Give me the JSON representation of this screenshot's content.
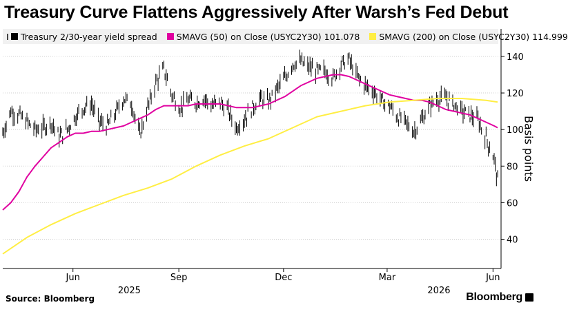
{
  "title": "Treasury Curve Flattens Aggressively After Warsh’s Fed Debut",
  "legend": [
    {
      "label": "Treasury 2/30-year yield spread",
      "color": "#000000",
      "extra": ""
    },
    {
      "label": "SMAVG (50)",
      "color": "#e000a0",
      "extra": "on Close (USYC2Y30) 101.078"
    },
    {
      "label": "SMAVG (200)",
      "color": "#ffee44",
      "extra": "on Close (USYC2Y30) 114.999"
    }
  ],
  "legend_icon": "chart-settings-icon",
  "source": "Source: Bloomberg",
  "brand": "Bloomberg",
  "chart_data": {
    "type": "line",
    "title": "Treasury Curve Flattens Aggressively After Warsh’s Fed Debut",
    "xlabel": "",
    "ylabel": "Basis points",
    "y_axis_side": "right",
    "ylim": [
      24,
      146
    ],
    "yticks": [
      40,
      60,
      80,
      100,
      120,
      140
    ],
    "xlim": [
      "2025-04-01",
      "2026-06-08"
    ],
    "xticks": [
      {
        "date": "2025-06-01",
        "label": "Jun"
      },
      {
        "date": "2025-09-01",
        "label": "Sep"
      },
      {
        "date": "2025-12-01",
        "label": "Dec"
      },
      {
        "date": "2026-03-01",
        "label": "Mar"
      },
      {
        "date": "2026-06-01",
        "label": "Jun"
      }
    ],
    "year_labels": [
      {
        "date": "2025-07-20",
        "label": "2025"
      },
      {
        "date": "2026-04-15",
        "label": "2026"
      }
    ],
    "grid": "horizontal",
    "series": [
      {
        "name": "Treasury 2/30-year yield spread",
        "style": "bars",
        "color": "#000000",
        "x": [
          "2025-04-01",
          "2025-04-08",
          "2025-04-15",
          "2025-04-22",
          "2025-04-29",
          "2025-05-06",
          "2025-05-13",
          "2025-05-20",
          "2025-05-27",
          "2025-06-03",
          "2025-06-10",
          "2025-06-17",
          "2025-06-24",
          "2025-07-01",
          "2025-07-08",
          "2025-07-15",
          "2025-07-22",
          "2025-07-29",
          "2025-08-05",
          "2025-08-12",
          "2025-08-19",
          "2025-08-26",
          "2025-09-02",
          "2025-09-09",
          "2025-09-16",
          "2025-09-23",
          "2025-09-30",
          "2025-10-07",
          "2025-10-14",
          "2025-10-21",
          "2025-10-28",
          "2025-11-04",
          "2025-11-11",
          "2025-11-18",
          "2025-11-25",
          "2025-12-02",
          "2025-12-09",
          "2025-12-16",
          "2025-12-23",
          "2025-12-30",
          "2026-01-06",
          "2026-01-13",
          "2026-01-20",
          "2026-01-27",
          "2026-02-03",
          "2026-02-10",
          "2026-02-17",
          "2026-02-24",
          "2026-03-03",
          "2026-03-10",
          "2026-03-17",
          "2026-03-24",
          "2026-03-31",
          "2026-04-07",
          "2026-04-14",
          "2026-04-21",
          "2026-04-28",
          "2026-05-05",
          "2026-05-12",
          "2026-05-19",
          "2026-05-26",
          "2026-06-02",
          "2026-06-05"
        ],
        "values": [
          98,
          110,
          108,
          104,
          100,
          101,
          104,
          96,
          100,
          107,
          112,
          114,
          104,
          102,
          109,
          117,
          114,
          97,
          112,
          126,
          133,
          119,
          112,
          116,
          115,
          117,
          113,
          115,
          110,
          101,
          106,
          112,
          117,
          115,
          122,
          128,
          136,
          137,
          134,
          132,
          132,
          128,
          136,
          138,
          129,
          124,
          121,
          116,
          113,
          107,
          104,
          99,
          105,
          113,
          117,
          117,
          114,
          110,
          108,
          105,
          95,
          84,
          72
        ]
      },
      {
        "name": "SMAVG (50)",
        "style": "line",
        "color": "#e000a0",
        "x": [
          "2025-04-01",
          "2025-04-08",
          "2025-04-15",
          "2025-04-22",
          "2025-04-29",
          "2025-05-06",
          "2025-05-13",
          "2025-05-20",
          "2025-05-27",
          "2025-06-03",
          "2025-06-10",
          "2025-06-17",
          "2025-06-24",
          "2025-07-01",
          "2025-07-08",
          "2025-07-15",
          "2025-07-22",
          "2025-07-29",
          "2025-08-05",
          "2025-08-12",
          "2025-08-19",
          "2025-08-26",
          "2025-09-02",
          "2025-09-09",
          "2025-09-16",
          "2025-09-23",
          "2025-09-30",
          "2025-10-07",
          "2025-10-14",
          "2025-10-21",
          "2025-10-28",
          "2025-11-04",
          "2025-11-11",
          "2025-11-18",
          "2025-11-25",
          "2025-12-02",
          "2025-12-09",
          "2025-12-16",
          "2025-12-23",
          "2025-12-30",
          "2026-01-06",
          "2026-01-13",
          "2026-01-20",
          "2026-01-27",
          "2026-02-03",
          "2026-02-10",
          "2026-02-17",
          "2026-02-24",
          "2026-03-03",
          "2026-03-10",
          "2026-03-17",
          "2026-03-24",
          "2026-03-31",
          "2026-04-07",
          "2026-04-14",
          "2026-04-21",
          "2026-04-28",
          "2026-05-05",
          "2026-05-12",
          "2026-05-19",
          "2026-05-26",
          "2026-06-02",
          "2026-06-05"
        ],
        "values": [
          56,
          60,
          66,
          74,
          80,
          85,
          90,
          93,
          96,
          98,
          98,
          99,
          99,
          100,
          101,
          102,
          104,
          106,
          108,
          111,
          113,
          113,
          113,
          113,
          114,
          114,
          114,
          114,
          113,
          112,
          112,
          112,
          113,
          114,
          116,
          118,
          121,
          124,
          126,
          128,
          129,
          130,
          130,
          129,
          127,
          125,
          123,
          121,
          119,
          118,
          117,
          116,
          116,
          115,
          113,
          111,
          110,
          109,
          108,
          106,
          104,
          102,
          101
        ]
      },
      {
        "name": "SMAVG (200)",
        "style": "line",
        "color": "#ffee44",
        "x": [
          "2025-04-01",
          "2025-04-22",
          "2025-05-13",
          "2025-06-03",
          "2025-06-24",
          "2025-07-15",
          "2025-08-05",
          "2025-08-26",
          "2025-09-16",
          "2025-10-07",
          "2025-10-28",
          "2025-11-18",
          "2025-12-09",
          "2025-12-30",
          "2026-01-20",
          "2026-02-10",
          "2026-03-03",
          "2026-03-24",
          "2026-04-14",
          "2026-05-05",
          "2026-05-26",
          "2026-06-05"
        ],
        "values": [
          32,
          41,
          48,
          54,
          59,
          64,
          68,
          73,
          80,
          86,
          91,
          95,
          101,
          107,
          110,
          113,
          115,
          116,
          117,
          117,
          116,
          115
        ]
      }
    ]
  }
}
